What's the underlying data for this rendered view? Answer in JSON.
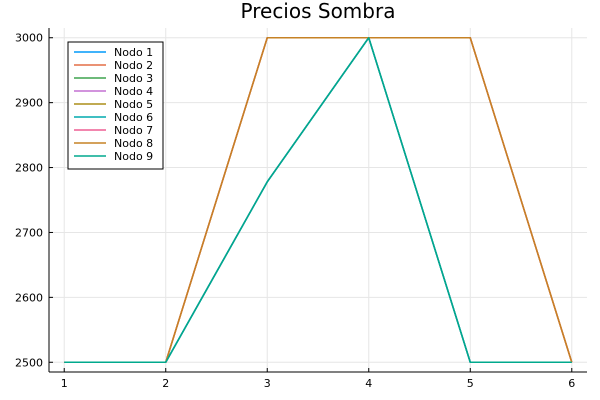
{
  "chart_data": {
    "type": "line",
    "title": "Precios Sombra",
    "xlabel": "",
    "ylabel": "",
    "x": [
      1,
      2,
      3,
      4,
      5,
      6
    ],
    "xlim": [
      0.85,
      6.15
    ],
    "ylim": [
      2485,
      3015
    ],
    "xticks": [
      1,
      2,
      3,
      4,
      5,
      6
    ],
    "yticks": [
      2500,
      2600,
      2700,
      2800,
      2900,
      3000
    ],
    "grid": true,
    "legend_position": "top-left",
    "series": [
      {
        "name": "Nodo 1",
        "color": "#009AFA",
        "values": [
          2500,
          2500,
          2778,
          3000,
          2500,
          2500
        ]
      },
      {
        "name": "Nodo 2",
        "color": "#E36F47",
        "values": [
          2500,
          2500,
          3000,
          3000,
          3000,
          2500
        ]
      },
      {
        "name": "Nodo 3",
        "color": "#3EA44E",
        "values": [
          2500,
          2500,
          2778,
          3000,
          2500,
          2500
        ]
      },
      {
        "name": "Nodo 4",
        "color": "#C371D2",
        "values": [
          2500,
          2500,
          2778,
          3000,
          2500,
          2500
        ]
      },
      {
        "name": "Nodo 5",
        "color": "#AC8E18",
        "values": [
          2500,
          2500,
          3000,
          3000,
          3000,
          2500
        ]
      },
      {
        "name": "Nodo 6",
        "color": "#00AAAE",
        "values": [
          2500,
          2500,
          2778,
          3000,
          2500,
          2500
        ]
      },
      {
        "name": "Nodo 7",
        "color": "#ED5E93",
        "values": [
          2500,
          2500,
          3000,
          3000,
          3000,
          2500
        ]
      },
      {
        "name": "Nodo 8",
        "color": "#C68225",
        "values": [
          2500,
          2500,
          3000,
          3000,
          3000,
          2500
        ]
      },
      {
        "name": "Nodo 9",
        "color": "#00A98D",
        "values": [
          2500,
          2500,
          2778,
          3000,
          2500,
          2500
        ]
      }
    ]
  }
}
